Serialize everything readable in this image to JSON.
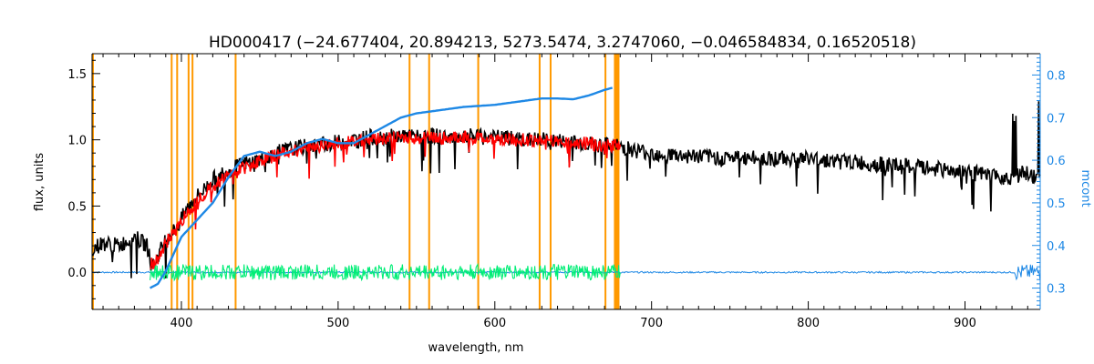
{
  "chart_data": {
    "type": "line",
    "title": "HD000417    (−24.677404, 20.894213, 5273.5474, 3.2747060, −0.046584834, 0.16520518)",
    "xlabel": "wavelength, nm",
    "ylabel": "flux, units",
    "y2label": "mcont",
    "xlim": [
      343,
      948
    ],
    "ylim": [
      -0.28,
      1.65
    ],
    "y2lim": [
      0.25,
      0.85
    ],
    "x_ticks": [
      400,
      500,
      600,
      700,
      800,
      900
    ],
    "y_ticks": [
      0.0,
      0.5,
      1.0,
      1.5
    ],
    "y_tick_labels": [
      "0.0",
      "0.5",
      "1.0",
      "1.5"
    ],
    "y2_ticks": [
      0.3,
      0.4,
      0.5,
      0.6,
      0.7,
      0.8
    ],
    "y2_tick_labels": [
      "0.3",
      "0.4",
      "0.5",
      "0.6",
      "0.7",
      "0.8"
    ],
    "colors": {
      "observed": "#000000",
      "model": "#ff0000",
      "residual": "#00ee76",
      "mcont": "#1e88e5",
      "masks": "#ff9900",
      "right_axis": "#1e88e5"
    },
    "mask_bands": [
      [
        343,
        344
      ],
      [
        393.2,
        394.0
      ],
      [
        396.7,
        397.5
      ],
      [
        404.0,
        405.0
      ],
      [
        406.5,
        407.5
      ],
      [
        434.0,
        435.0
      ],
      [
        545.0,
        546.0
      ],
      [
        557.5,
        558.5
      ],
      [
        588.8,
        590.0
      ],
      [
        628.0,
        629.0
      ],
      [
        635.0,
        636.0
      ],
      [
        670.0,
        671.0
      ],
      [
        676.0,
        679.5
      ]
    ],
    "series": [
      {
        "key": "observed",
        "x": [
          343,
          350,
          360,
          370,
          378,
          382,
          386,
          390,
          394,
          398,
          402,
          408,
          414,
          420,
          426,
          432,
          440,
          450,
          460,
          470,
          480,
          490,
          500,
          510,
          520,
          530,
          540,
          550,
          560,
          570,
          580,
          590,
          600,
          610,
          620,
          630,
          640,
          650,
          660,
          670,
          680,
          690,
          700,
          720,
          740,
          760,
          780,
          800,
          820,
          840,
          860,
          880,
          900,
          910,
          920,
          930,
          938,
          944,
          948
        ],
        "y": [
          0.18,
          0.22,
          0.2,
          0.27,
          0.2,
          0.05,
          0.15,
          0.25,
          0.3,
          0.35,
          0.45,
          0.55,
          0.62,
          0.7,
          0.75,
          0.78,
          0.82,
          0.85,
          0.9,
          0.93,
          0.95,
          0.97,
          0.98,
          1.0,
          1.02,
          1.02,
          1.03,
          1.02,
          1.03,
          1.02,
          1.03,
          1.02,
          1.02,
          1.01,
          1.0,
          1.0,
          0.99,
          0.98,
          0.97,
          0.96,
          0.95,
          0.92,
          0.9,
          0.88,
          0.87,
          0.86,
          0.86,
          0.86,
          0.84,
          0.82,
          0.8,
          0.78,
          0.76,
          0.74,
          0.72,
          0.72,
          0.75,
          0.72,
          0.7
        ]
      },
      {
        "key": "model",
        "x": [
          380,
          386,
          392,
          398,
          404,
          410,
          418,
          426,
          434,
          442,
          450,
          460,
          470,
          480,
          490,
          500,
          510,
          520,
          530,
          540,
          550,
          560,
          570,
          580,
          590,
          600,
          610,
          620,
          630,
          640,
          650,
          660,
          670,
          680
        ],
        "y": [
          0.05,
          0.12,
          0.25,
          0.35,
          0.45,
          0.55,
          0.63,
          0.7,
          0.76,
          0.8,
          0.84,
          0.88,
          0.92,
          0.94,
          0.96,
          0.97,
          0.99,
          1.01,
          1.01,
          1.02,
          1.01,
          1.02,
          1.01,
          1.02,
          1.01,
          1.01,
          1.0,
          1.0,
          0.99,
          0.99,
          0.98,
          0.97,
          0.96,
          0.95
        ]
      },
      {
        "key": "mcont",
        "x": [
          380,
          385,
          390,
          395,
          400,
          410,
          420,
          430,
          440,
          450,
          460,
          470,
          480,
          490,
          500,
          510,
          520,
          530,
          540,
          550,
          560,
          580,
          600,
          620,
          630,
          640,
          650,
          660,
          670,
          675
        ],
        "y": [
          0.3,
          0.31,
          0.34,
          0.38,
          0.42,
          0.46,
          0.5,
          0.56,
          0.61,
          0.62,
          0.61,
          0.62,
          0.64,
          0.65,
          0.64,
          0.64,
          0.66,
          0.68,
          0.7,
          0.71,
          0.715,
          0.725,
          0.73,
          0.74,
          0.745,
          0.745,
          0.743,
          0.752,
          0.765,
          0.77
        ]
      }
    ],
    "residual_x_range": [
      380,
      680
    ],
    "residual_level": 0.0,
    "residual_spread": 0.06,
    "blue_noise_x_range": [
      343,
      948
    ],
    "blue_noise_level": 0.0
  }
}
